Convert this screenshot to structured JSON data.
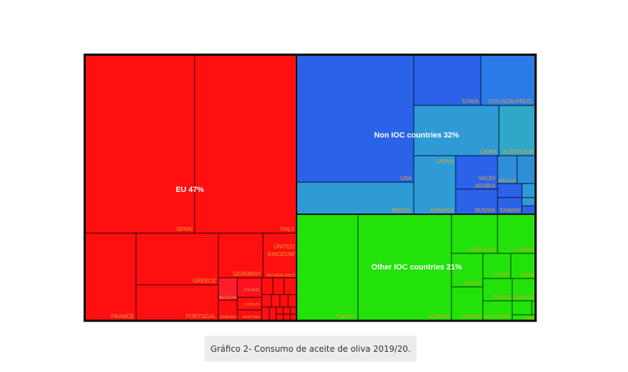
{
  "chart_data": {
    "type": "treemap",
    "groups": [
      {
        "label": "EU 47%",
        "color": "#ff0f0f",
        "items": [
          "SPAIN",
          "ITALY",
          "FRANCE",
          "GREECE",
          "PORTUGAL",
          "GERMANY",
          "UNITED KINGDOM",
          "NETHERLANDS",
          "POLAND",
          "BELGIUM",
          "CYPRUS",
          "SWEDEN",
          "AUSTRIA"
        ]
      },
      {
        "label": "Non IOC countries 32%",
        "color": "#2a63e8",
        "items": [
          "USA",
          "BRAZIL",
          "SYRIA",
          "OTH.NON-PROD.",
          "CHINA",
          "AUSTRALIA",
          "JAPAN",
          "SAUDI ARABIA",
          "MEXICO",
          "CANADA",
          "RUSSIA",
          "TAIWAN"
        ]
      },
      {
        "label": "Other IOC countries 21%",
        "color": "#22e20a",
        "items": [
          "TURKEY",
          "ALGERIA",
          "MOROCCO",
          "TUNISIA",
          "EGYPT",
          "JORDAN",
          "SYRIA",
          "LIBYA",
          "ISRAEL",
          "LEBANON",
          "PALESTINE",
          "IRAN"
        ]
      }
    ]
  },
  "caption": "Gráfico 2- Consumo de aceite de oliva 2019/20."
}
